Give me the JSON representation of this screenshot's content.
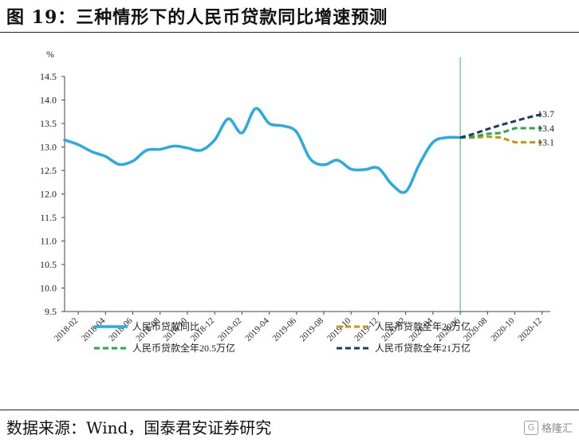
{
  "title": "图  19：三种情形下的人民币贷款同比增速预测",
  "source": "数据来源：Wind，国泰君安证券研究",
  "watermark": {
    "logo": "G",
    "text": "格隆汇"
  },
  "chart_data": {
    "type": "line",
    "title": "图  19：三种情形下的人民币贷款同比增速预测",
    "ylabel": "%",
    "xlabel": "",
    "ylim": [
      9.5,
      14.5
    ],
    "yticks": [
      "9.5",
      "10.0",
      "10.5",
      "11.0",
      "11.5",
      "12.0",
      "12.5",
      "13.0",
      "13.5",
      "14.0",
      "14.5"
    ],
    "x_ticks": [
      "2018-02",
      "2018-04",
      "2018-06",
      "2018-08",
      "2018-10",
      "2018-12",
      "2019-02",
      "2019-04",
      "2019-06",
      "2019-08",
      "2019-10",
      "2019-12",
      "2020-02",
      "2020-04",
      "2020-06",
      "2020-08",
      "2020-10",
      "2020-12"
    ],
    "grid": false,
    "legend_position": "bottom",
    "vertical_line": "2020-06",
    "series": [
      {
        "name": "人民币贷款同比",
        "color": "#29abe2",
        "style": "solid",
        "x": [
          "2018-01",
          "2018-02",
          "2018-03",
          "2018-04",
          "2018-05",
          "2018-06",
          "2018-07",
          "2018-08",
          "2018-09",
          "2018-10",
          "2018-11",
          "2018-12",
          "2019-01",
          "2019-02",
          "2019-03",
          "2019-04",
          "2019-05",
          "2019-06",
          "2019-07",
          "2019-08",
          "2019-09",
          "2019-10",
          "2019-11",
          "2019-12",
          "2020-01",
          "2020-02",
          "2020-03",
          "2020-04",
          "2020-05",
          "2020-06"
        ],
        "values": [
          13.15,
          13.05,
          12.9,
          12.8,
          12.63,
          12.7,
          12.93,
          12.95,
          13.02,
          12.98,
          12.93,
          13.15,
          13.6,
          13.3,
          13.82,
          13.5,
          13.45,
          13.32,
          12.75,
          12.62,
          12.72,
          12.53,
          12.52,
          12.55,
          12.2,
          12.05,
          12.63,
          13.1,
          13.2,
          13.2
        ]
      },
      {
        "name": "人民币贷款全年20万亿",
        "color": "#c8960c",
        "style": "dashed",
        "x": [
          "2020-06",
          "2020-07",
          "2020-08",
          "2020-09",
          "2020-10",
          "2020-11",
          "2020-12"
        ],
        "values": [
          13.2,
          13.2,
          13.22,
          13.2,
          13.1,
          13.1,
          13.1
        ],
        "end_label": "13.1"
      },
      {
        "name": "人民币贷款全年20.5万亿",
        "color": "#1faa4b",
        "style": "dashed",
        "x": [
          "2020-06",
          "2020-07",
          "2020-08",
          "2020-09",
          "2020-10",
          "2020-11",
          "2020-12"
        ],
        "values": [
          13.2,
          13.22,
          13.28,
          13.3,
          13.4,
          13.4,
          13.4
        ],
        "end_label": "13.4"
      },
      {
        "name": "人民币贷款全年21万亿",
        "color": "#1f3864",
        "style": "dashed",
        "x": [
          "2020-06",
          "2020-07",
          "2020-08",
          "2020-09",
          "2020-10",
          "2020-11",
          "2020-12"
        ],
        "values": [
          13.2,
          13.28,
          13.38,
          13.47,
          13.55,
          13.63,
          13.7
        ],
        "end_label": "13.7"
      }
    ]
  }
}
